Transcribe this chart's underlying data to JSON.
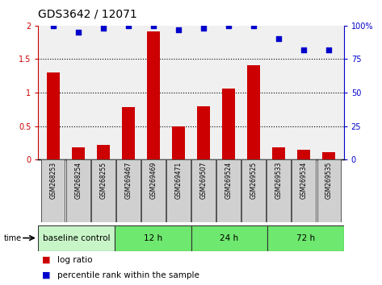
{
  "title": "GDS3642 / 12071",
  "categories": [
    "GSM268253",
    "GSM268254",
    "GSM268255",
    "GSM269467",
    "GSM269469",
    "GSM269471",
    "GSM269507",
    "GSM269524",
    "GSM269525",
    "GSM269533",
    "GSM269534",
    "GSM269535"
  ],
  "log_ratio": [
    1.3,
    0.18,
    0.22,
    0.78,
    1.92,
    0.5,
    0.8,
    1.06,
    1.41,
    0.18,
    0.15,
    0.11
  ],
  "percentile_rank": [
    100,
    95,
    98,
    100,
    100,
    97,
    98,
    100,
    100,
    90,
    82,
    82
  ],
  "bar_color": "#cc0000",
  "dot_color": "#0000cc",
  "ylim_left": [
    0,
    2
  ],
  "ylim_right": [
    0,
    100
  ],
  "yticks_left": [
    0,
    0.5,
    1.0,
    1.5,
    2.0
  ],
  "yticks_right": [
    0,
    25,
    50,
    75,
    100
  ],
  "ytick_labels_left": [
    "0",
    "0.5",
    "1",
    "1.5",
    "2"
  ],
  "ytick_labels_right": [
    "0",
    "25",
    "50",
    "75",
    "100%"
  ],
  "dotted_lines": [
    0.5,
    1.0,
    1.5
  ],
  "group_defs": [
    {
      "label": "baseline control",
      "start": 0,
      "end": 3,
      "color": "#c8f5c8"
    },
    {
      "label": "12 h",
      "start": 3,
      "end": 6,
      "color": "#6ee86e"
    },
    {
      "label": "24 h",
      "start": 6,
      "end": 9,
      "color": "#6ee86e"
    },
    {
      "label": "72 h",
      "start": 9,
      "end": 12,
      "color": "#6ee86e"
    }
  ],
  "sample_box_color": "#d0d0d0",
  "plot_bg_color": "#f0f0f0",
  "bar_width": 0.5,
  "legend_items": [
    {
      "label": "log ratio",
      "color": "#cc0000"
    },
    {
      "label": "percentile rank within the sample",
      "color": "#0000cc"
    }
  ]
}
